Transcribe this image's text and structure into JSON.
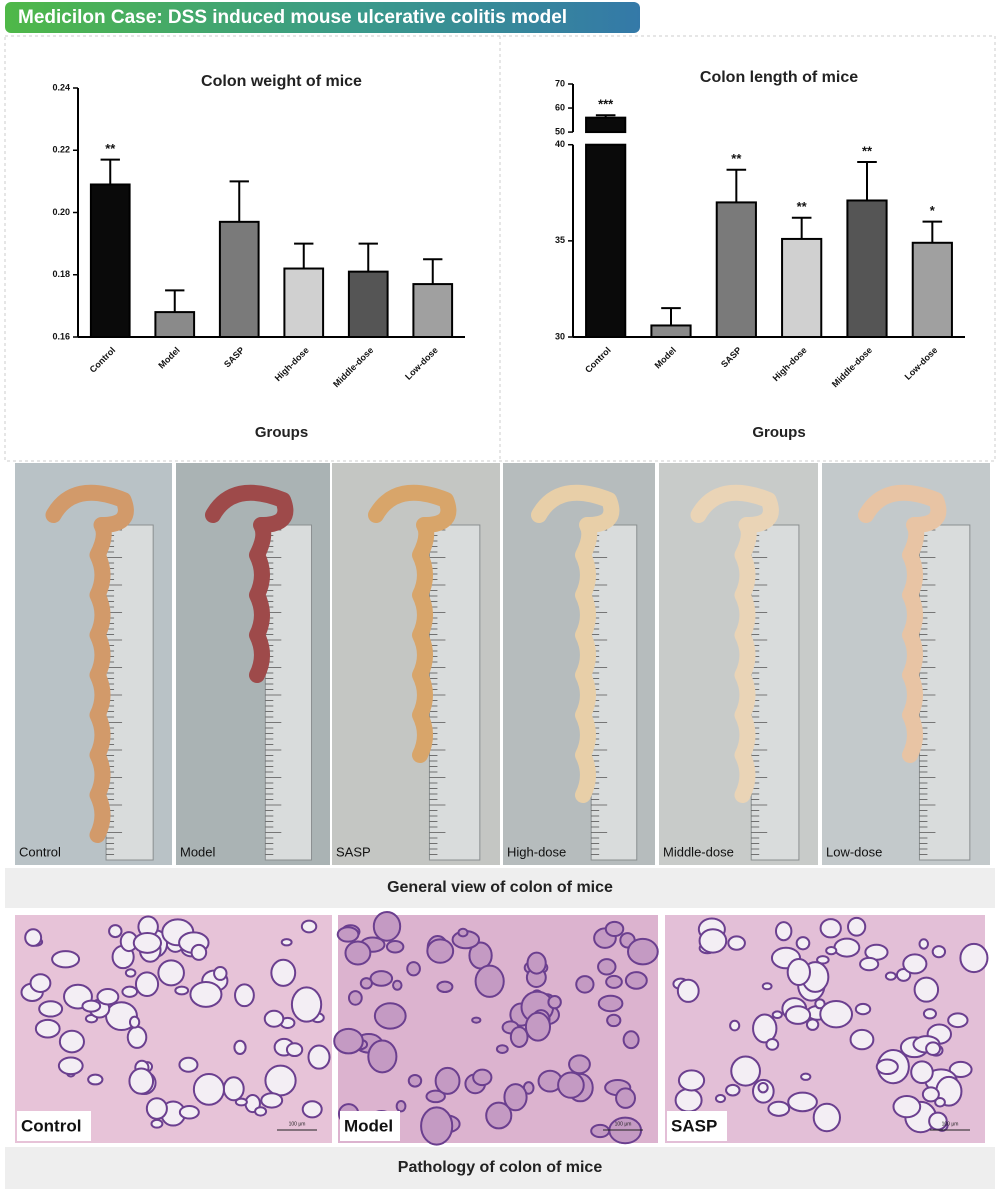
{
  "header": {
    "title": "Medicilon Case: DSS induced mouse ulcerative colitis model"
  },
  "chart_data": [
    {
      "type": "bar",
      "title": "Colon weight of mice",
      "x_label": "Groups",
      "categories": [
        "Control",
        "Model",
        "SASP",
        "High-dose",
        "Middle-dose",
        "Low-dose"
      ],
      "values": [
        0.209,
        0.168,
        0.197,
        0.182,
        0.181,
        0.177
      ],
      "errors": [
        0.008,
        0.007,
        0.013,
        0.008,
        0.009,
        0.008
      ],
      "annotations": [
        "**",
        null,
        null,
        null,
        null,
        null
      ],
      "colors": [
        "#0a0a0a",
        "#8a8a8a",
        "#7a7a7a",
        "#d0d0d0",
        "#555555",
        "#a0a0a0"
      ],
      "ylim": [
        0.16,
        0.24
      ],
      "yticks": [
        0.16,
        0.18,
        {
          "value": 0.2,
          "label": "0.20"
        },
        0.22,
        0.24
      ]
    },
    {
      "type": "bar",
      "title": "Colon length of mice",
      "x_label": "Groups",
      "categories": [
        "Control",
        "Model",
        "SASP",
        "High-dose",
        "Middle-dose",
        "Low-dose"
      ],
      "values": [
        56,
        30.6,
        37.0,
        35.1,
        37.1,
        34.9
      ],
      "errors": [
        1,
        0.9,
        1.7,
        1.1,
        2.0,
        1.1
      ],
      "annotations": [
        "***",
        null,
        "**",
        "**",
        "**",
        "*"
      ],
      "colors": [
        "#0a0a0a",
        "#8a8a8a",
        "#7a7a7a",
        "#d0d0d0",
        "#555555",
        "#a0a0a0"
      ],
      "ylim": [
        30,
        70
      ],
      "axis_break": [
        40,
        50
      ],
      "yticks": [
        30,
        35,
        40,
        50,
        60,
        70
      ]
    }
  ],
  "photos": {
    "caption": "General view of colon of mice",
    "labels": [
      "Control",
      "Model",
      "SASP",
      "High-dose",
      "Middle-dose",
      "Low-dose"
    ]
  },
  "pathology": {
    "caption": "Pathology of colon of mice",
    "labels": [
      "Control",
      "Model",
      "SASP"
    ],
    "scale_labels": [
      "100 μm",
      "100 μm",
      "100 μm"
    ]
  }
}
